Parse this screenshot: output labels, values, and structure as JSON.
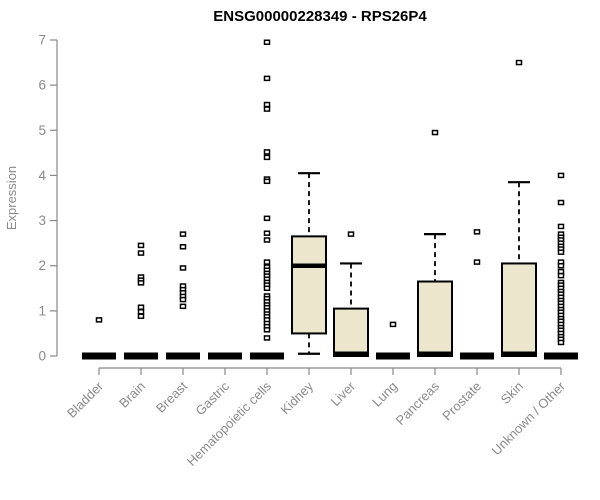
{
  "chart_data": {
    "type": "boxplot",
    "title": "ENSG00000228349 - RPS26P4",
    "ylabel": "Expression",
    "xlabel": "",
    "ylim": [
      0,
      7
    ],
    "yticks": [
      0,
      1,
      2,
      3,
      4,
      5,
      6,
      7
    ],
    "grid": false,
    "legend": "none",
    "colors": {
      "box_fill": "#ece7cc",
      "box_stroke": "#000000",
      "median": "#000000",
      "whisker": "#000000",
      "outlier_stroke": "#000000",
      "outlier_fill": "#ffffff",
      "axis_line": "#888888",
      "tick_label": "#8a8a8a",
      "title": "#000000",
      "background": "#ffffff"
    },
    "categories": [
      "Bladder",
      "Brain",
      "Breast",
      "Gastric",
      "Hematopoietic cells",
      "Kidney",
      "Liver",
      "Lung",
      "Pancreas",
      "Prostate",
      "Skin",
      "Unknown / Other"
    ],
    "series": [
      {
        "category": "Bladder",
        "median": 0,
        "q1": 0,
        "q3": 0,
        "whisker_low": 0,
        "whisker_high": 0,
        "outliers": [
          0.8
        ]
      },
      {
        "category": "Brain",
        "median": 0,
        "q1": 0,
        "q3": 0,
        "whisker_low": 0,
        "whisker_high": 0,
        "outliers": [
          2.45,
          2.28,
          1.75,
          1.68,
          1.62,
          1.08,
          0.98,
          0.88
        ]
      },
      {
        "category": "Breast",
        "median": 0,
        "q1": 0,
        "q3": 0,
        "whisker_low": 0,
        "whisker_high": 0,
        "outliers": [
          2.7,
          2.42,
          1.95,
          1.55,
          1.47,
          1.4,
          1.32,
          1.25,
          1.1
        ]
      },
      {
        "category": "Gastric",
        "median": 0,
        "q1": 0,
        "q3": 0,
        "whisker_low": 0,
        "whisker_high": 0,
        "outliers": []
      },
      {
        "category": "Hematopoietic cells",
        "median": 0,
        "q1": 0,
        "q3": 0,
        "whisker_low": 0,
        "whisker_high": 0,
        "outliers": [
          6.95,
          6.15,
          5.57,
          5.47,
          4.52,
          4.4,
          3.92,
          3.87,
          3.05,
          2.72,
          2.57,
          2.08,
          1.97,
          1.9,
          1.83,
          1.77,
          1.7,
          1.63,
          1.57,
          1.5,
          1.33,
          1.27,
          1.2,
          1.13,
          1.07,
          1.0,
          0.93,
          0.87,
          0.8,
          0.72,
          0.65,
          0.58,
          0.4
        ]
      },
      {
        "category": "Kidney",
        "median": 2.0,
        "q1": 0.5,
        "q3": 2.65,
        "whisker_low": 0.05,
        "whisker_high": 4.05,
        "outliers": []
      },
      {
        "category": "Liver",
        "median": 0.05,
        "q1": 0,
        "q3": 1.05,
        "whisker_low": 0,
        "whisker_high": 2.05,
        "outliers": [
          2.7
        ]
      },
      {
        "category": "Lung",
        "median": 0,
        "q1": 0,
        "q3": 0,
        "whisker_low": 0,
        "whisker_high": 0,
        "outliers": [
          0.7
        ]
      },
      {
        "category": "Pancreas",
        "median": 0.05,
        "q1": 0,
        "q3": 1.65,
        "whisker_low": 0,
        "whisker_high": 2.7,
        "outliers": [
          4.95
        ]
      },
      {
        "category": "Prostate",
        "median": 0,
        "q1": 0,
        "q3": 0,
        "whisker_low": 0,
        "whisker_high": 0,
        "outliers": [
          2.75,
          2.08
        ]
      },
      {
        "category": "Skin",
        "median": 0.05,
        "q1": 0,
        "q3": 2.05,
        "whisker_low": 0,
        "whisker_high": 3.85,
        "outliers": [
          6.5
        ]
      },
      {
        "category": "Unknown / Other",
        "median": 0,
        "q1": 0,
        "q3": 0,
        "whisker_low": 0,
        "whisker_high": 0,
        "outliers": [
          4.0,
          3.4,
          2.87,
          2.7,
          2.63,
          2.57,
          2.5,
          2.43,
          2.37,
          2.3,
          2.08,
          2.0,
          1.87,
          1.78,
          1.63,
          1.57,
          1.5,
          1.43,
          1.37,
          1.3,
          1.23,
          1.17,
          1.1,
          1.03,
          0.97,
          0.9,
          0.83,
          0.77,
          0.7,
          0.63,
          0.57,
          0.5,
          0.43,
          0.37,
          0.3
        ]
      }
    ]
  }
}
